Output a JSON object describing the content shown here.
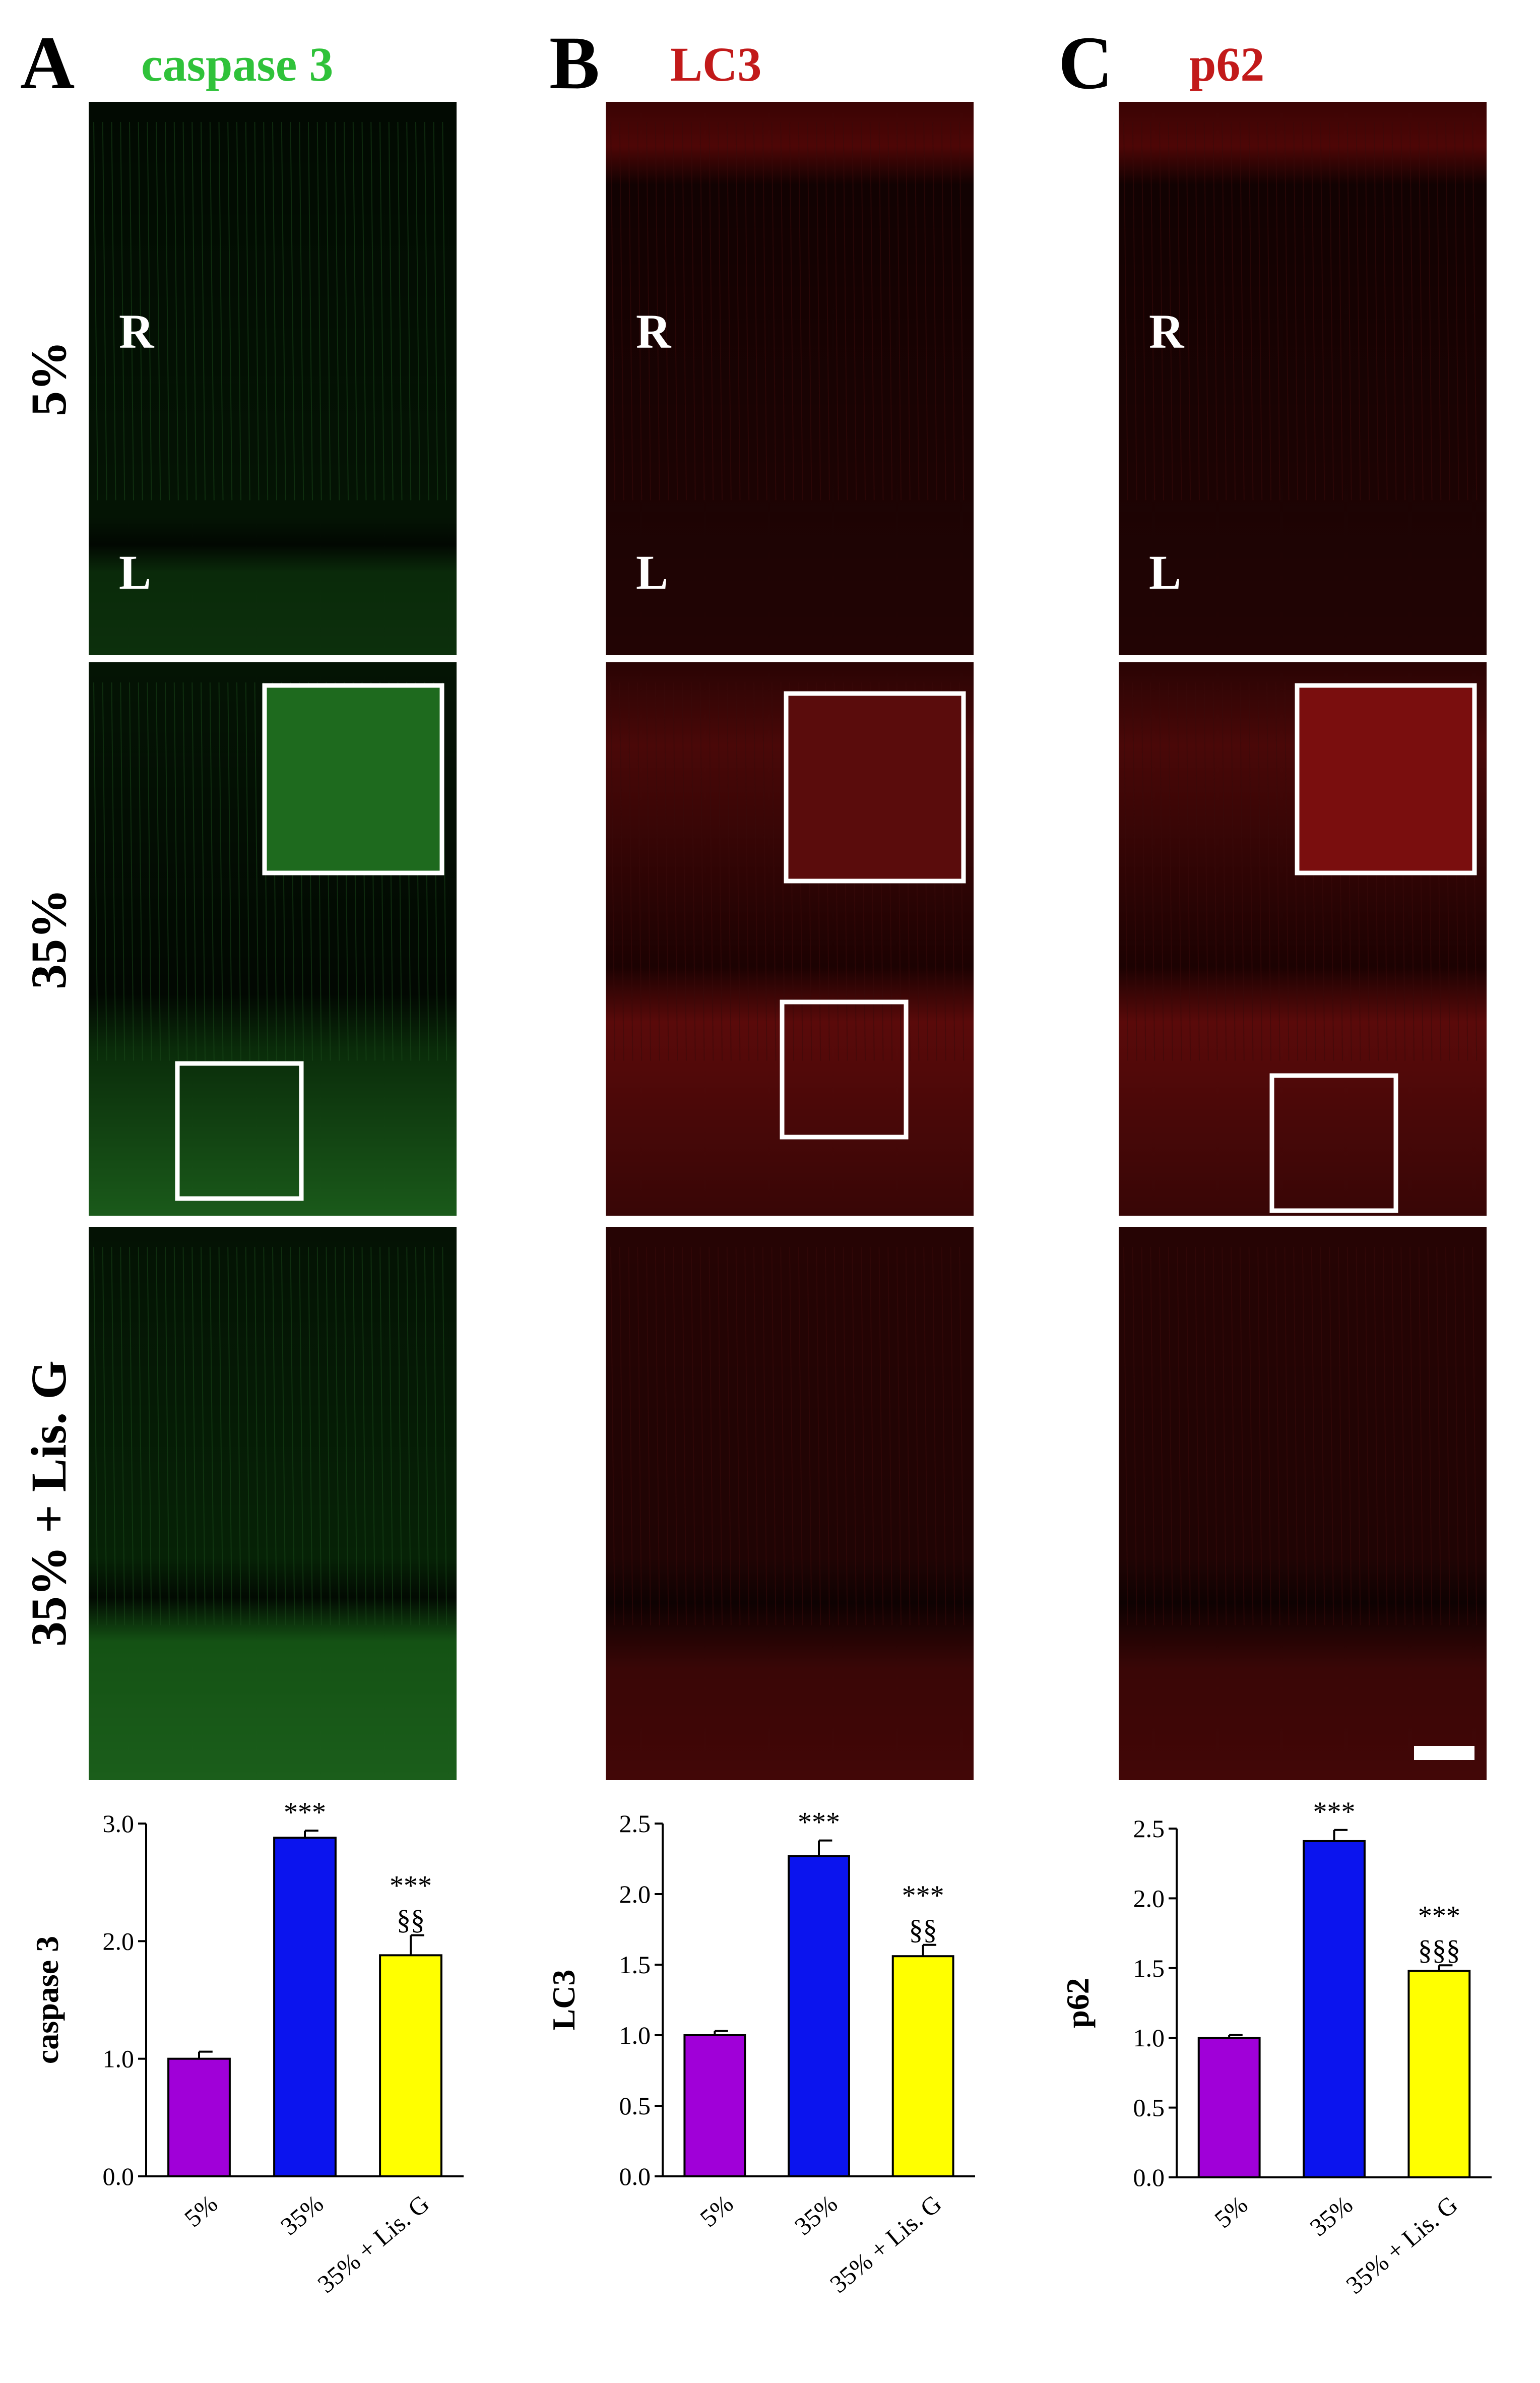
{
  "colors": {
    "green": "#2fc23a",
    "red": "#c21a1a",
    "bar_5": "#a000d8",
    "bar_35": "#0b14ee",
    "bar_lis": "#ffff00"
  },
  "panels": [
    {
      "letter": "A",
      "stain": "caspase 3",
      "stain_color": "#2fc23a"
    },
    {
      "letter": "B",
      "stain": "LC3",
      "stain_color": "#c21a1a"
    },
    {
      "letter": "C",
      "stain": "p62",
      "stain_color": "#c21a1a"
    }
  ],
  "rows": [
    "5%",
    "35%",
    "35% + Lis. G"
  ],
  "layer_labels": {
    "top": "R",
    "bottom": "L"
  },
  "chart_data": [
    {
      "type": "bar",
      "categories": [
        "5%",
        "35%",
        "35% + Lis. G"
      ],
      "values": [
        1.0,
        2.88,
        1.88
      ],
      "errors": [
        0.06,
        0.06,
        0.17
      ],
      "ylabel": "caspase 3",
      "ylim": [
        0,
        3.0
      ],
      "yticks": [
        "0.0",
        "1.0",
        "2.0",
        "3.0"
      ],
      "annotations": [
        [
          "",
          ""
        ],
        [
          "***",
          ""
        ],
        [
          "***",
          "§§"
        ]
      ],
      "colors": [
        "#a000d8",
        "#0b14ee",
        "#ffff00"
      ]
    },
    {
      "type": "bar",
      "categories": [
        "5%",
        "35%",
        "35% + Lis. G"
      ],
      "values": [
        1.0,
        2.27,
        1.56
      ],
      "errors": [
        0.03,
        0.11,
        0.08
      ],
      "ylabel": "LC3",
      "ylim": [
        0,
        2.5
      ],
      "yticks": [
        "0.0",
        "0.5",
        "1.0",
        "1.5",
        "2.0",
        "2.5"
      ],
      "annotations": [
        [
          "",
          ""
        ],
        [
          "***",
          ""
        ],
        [
          "***",
          "§§"
        ]
      ],
      "colors": [
        "#a000d8",
        "#0b14ee",
        "#ffff00"
      ]
    },
    {
      "type": "bar",
      "categories": [
        "5%",
        "35%",
        "35% + Lis. G"
      ],
      "values": [
        1.0,
        2.41,
        1.48
      ],
      "errors": [
        0.02,
        0.08,
        0.04
      ],
      "ylabel": "p62",
      "ylim": [
        0,
        2.5
      ],
      "yticks": [
        "0.0",
        "0.5",
        "1.0",
        "1.5",
        "2.0",
        "2.5"
      ],
      "annotations": [
        [
          "",
          ""
        ],
        [
          "***",
          ""
        ],
        [
          "***",
          "§§§"
        ]
      ],
      "colors": [
        "#a000d8",
        "#0b14ee",
        "#ffff00"
      ]
    }
  ]
}
